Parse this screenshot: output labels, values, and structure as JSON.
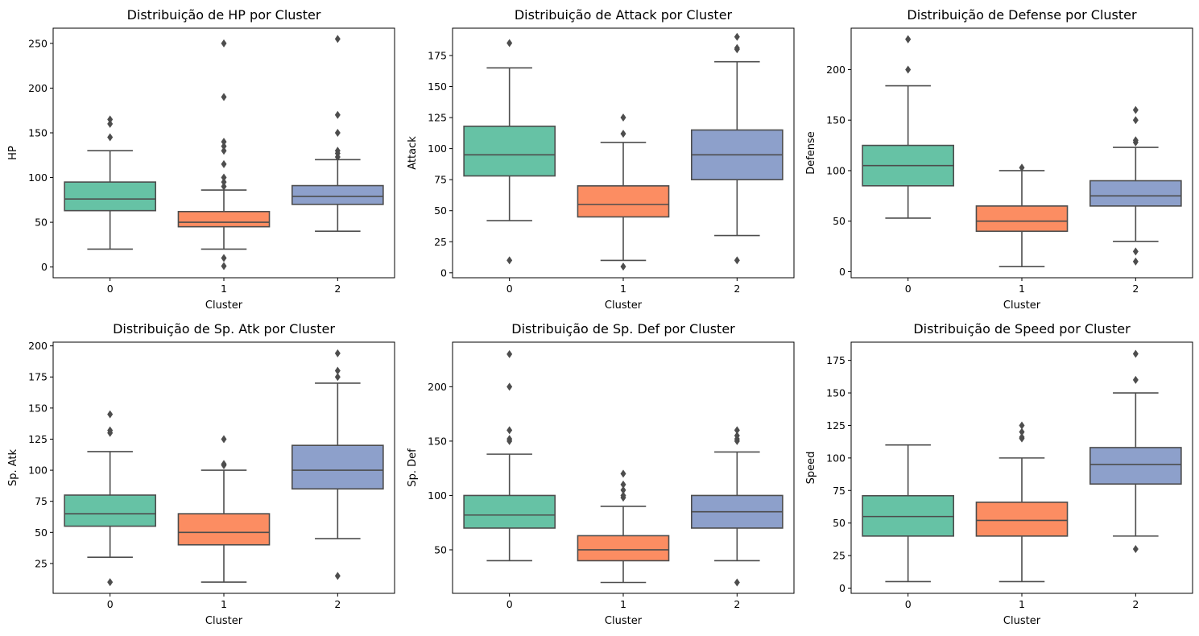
{
  "figure": {
    "background": "#ffffff"
  },
  "palette": [
    "#66c2a5",
    "#fc8d62",
    "#8da0cb"
  ],
  "styles": {
    "line_color": "#4d4d4d",
    "axis_color": "#000000"
  },
  "chart_data": [
    {
      "type": "box",
      "title": "Distribuição de HP por Cluster",
      "xlabel": "Cluster",
      "ylabel": "HP",
      "categories": [
        "0",
        "1",
        "2"
      ],
      "ylim": [
        -12,
        267
      ],
      "yticks": [
        0,
        50,
        100,
        150,
        200,
        250
      ],
      "boxes": [
        {
          "min": 20,
          "q1": 63,
          "median": 76,
          "q3": 95,
          "max": 130,
          "outliers": [
            145,
            160,
            165
          ]
        },
        {
          "min": 20,
          "q1": 45,
          "median": 50,
          "q3": 62,
          "max": 86,
          "outliers": [
            1,
            10,
            90,
            95,
            100,
            115,
            130,
            135,
            140,
            190,
            250
          ]
        },
        {
          "min": 40,
          "q1": 70,
          "median": 79,
          "q3": 91,
          "max": 120,
          "outliers": [
            123,
            127,
            130,
            150,
            170,
            255
          ]
        }
      ]
    },
    {
      "type": "box",
      "title": "Distribuição de Attack por Cluster",
      "xlabel": "Cluster",
      "ylabel": "Attack",
      "categories": [
        "0",
        "1",
        "2"
      ],
      "ylim": [
        -4,
        197
      ],
      "yticks": [
        0,
        25,
        50,
        75,
        100,
        125,
        150,
        175
      ],
      "boxes": [
        {
          "min": 42,
          "q1": 78,
          "median": 95,
          "q3": 118,
          "max": 165,
          "outliers": [
            10,
            185
          ]
        },
        {
          "min": 10,
          "q1": 45,
          "median": 55,
          "q3": 70,
          "max": 105,
          "outliers": [
            5,
            112,
            125
          ]
        },
        {
          "min": 30,
          "q1": 75,
          "median": 95,
          "q3": 115,
          "max": 170,
          "outliers": [
            10,
            180,
            181,
            190
          ]
        }
      ]
    },
    {
      "type": "box",
      "title": "Distribuição de Defense por Cluster",
      "xlabel": "Cluster",
      "ylabel": "Defense",
      "categories": [
        "0",
        "1",
        "2"
      ],
      "ylim": [
        -6,
        241
      ],
      "yticks": [
        0,
        50,
        100,
        150,
        200
      ],
      "boxes": [
        {
          "min": 53,
          "q1": 85,
          "median": 105,
          "q3": 125,
          "max": 184,
          "outliers": [
            200,
            230,
            230
          ]
        },
        {
          "min": 5,
          "q1": 40,
          "median": 50,
          "q3": 65,
          "max": 100,
          "outliers": [
            103
          ]
        },
        {
          "min": 30,
          "q1": 65,
          "median": 75,
          "q3": 90,
          "max": 123,
          "outliers": [
            10,
            20,
            128,
            130,
            150,
            160
          ]
        }
      ]
    },
    {
      "type": "box",
      "title": "Distribuição de Sp. Atk por Cluster",
      "xlabel": "Cluster",
      "ylabel": "Sp. Atk",
      "categories": [
        "0",
        "1",
        "2"
      ],
      "ylim": [
        1,
        203
      ],
      "yticks": [
        25,
        50,
        75,
        100,
        125,
        150,
        175,
        200
      ],
      "boxes": [
        {
          "min": 30,
          "q1": 55,
          "median": 65,
          "q3": 80,
          "max": 115,
          "outliers": [
            10,
            130,
            132,
            145
          ]
        },
        {
          "min": 10,
          "q1": 40,
          "median": 50,
          "q3": 65,
          "max": 100,
          "outliers": [
            104,
            105,
            125
          ]
        },
        {
          "min": 45,
          "q1": 85,
          "median": 100,
          "q3": 120,
          "max": 170,
          "outliers": [
            15,
            175,
            180,
            194
          ]
        }
      ]
    },
    {
      "type": "box",
      "title": "Distribuição de Sp. Def por Cluster",
      "xlabel": "Cluster",
      "ylabel": "Sp. Def",
      "categories": [
        "0",
        "1",
        "2"
      ],
      "ylim": [
        10,
        241
      ],
      "yticks": [
        50,
        100,
        150,
        200
      ],
      "boxes": [
        {
          "min": 40,
          "q1": 70,
          "median": 82,
          "q3": 100,
          "max": 138,
          "outliers": [
            150,
            152,
            160,
            200,
            230
          ]
        },
        {
          "min": 20,
          "q1": 40,
          "median": 50,
          "q3": 63,
          "max": 90,
          "outliers": [
            98,
            100,
            105,
            110,
            120
          ]
        },
        {
          "min": 40,
          "q1": 70,
          "median": 85,
          "q3": 100,
          "max": 140,
          "outliers": [
            20,
            150,
            152,
            155,
            160
          ]
        }
      ]
    },
    {
      "type": "box",
      "title": "Distribuição de Speed por Cluster",
      "xlabel": "Cluster",
      "ylabel": "Speed",
      "categories": [
        "0",
        "1",
        "2"
      ],
      "ylim": [
        -4,
        189
      ],
      "yticks": [
        0,
        25,
        50,
        75,
        100,
        125,
        150,
        175
      ],
      "boxes": [
        {
          "min": 5,
          "q1": 40,
          "median": 55,
          "q3": 71,
          "max": 110,
          "outliers": []
        },
        {
          "min": 5,
          "q1": 40,
          "median": 52,
          "q3": 66,
          "max": 100,
          "outliers": [
            115,
            116,
            120,
            125
          ]
        },
        {
          "min": 40,
          "q1": 80,
          "median": 95,
          "q3": 108,
          "max": 150,
          "outliers": [
            30,
            160,
            180
          ]
        }
      ]
    }
  ]
}
